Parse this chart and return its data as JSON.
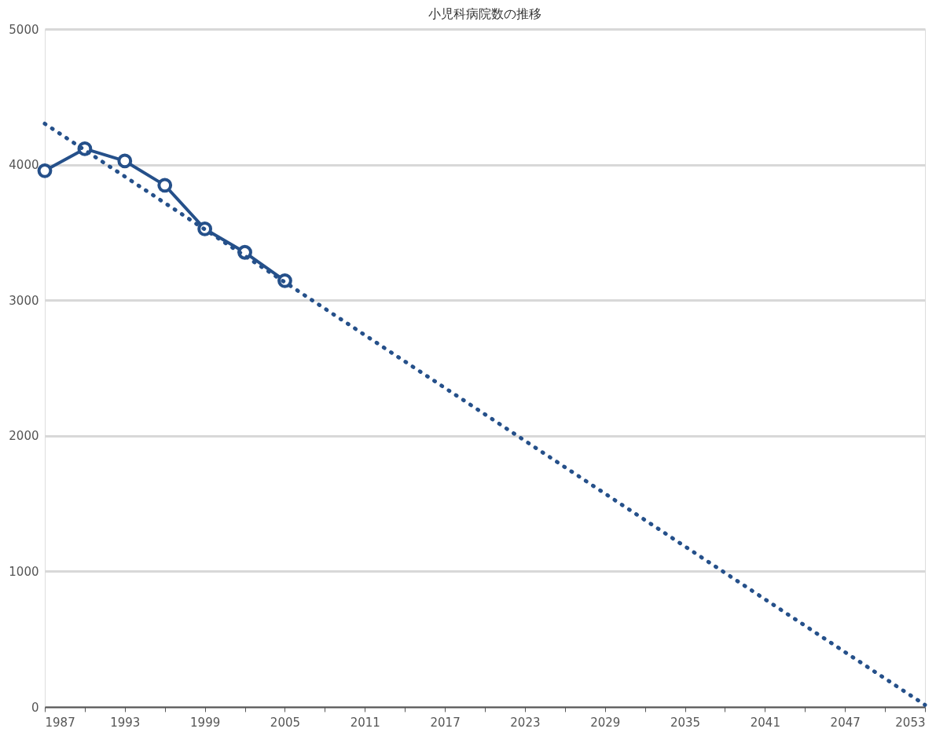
{
  "chart_data": {
    "type": "line",
    "title": "小児科病院数の推移",
    "x": [
      1987,
      1990,
      1993,
      1996,
      1999,
      2002,
      2005
    ],
    "series": [
      {
        "color": "#25508a",
        "values": [
          3955,
          4117,
          4027,
          3848,
          3526,
          3353,
          3144
        ],
        "marker": "circle",
        "line_style": "solid"
      },
      {
        "type": "line",
        "color": "#25508a",
        "x": [
          1987,
          2053
        ],
        "values": [
          4302,
          15
        ],
        "marker": "none",
        "line_style": "dotted"
      }
    ],
    "xlim": [
      1987,
      2053
    ],
    "xticks": [
      1987,
      {
        "value": 1990,
        "label": null
      },
      1993,
      {
        "value": 1996,
        "label": null
      },
      1999,
      {
        "value": 2002,
        "label": null
      },
      2005,
      {
        "value": 2008,
        "label": null
      },
      2011,
      {
        "value": 2014,
        "label": null
      },
      2017,
      {
        "value": 2020,
        "label": null
      },
      2023,
      {
        "value": 2026,
        "label": null
      },
      2029,
      {
        "value": 2032,
        "label": null
      },
      2035,
      {
        "value": 2038,
        "label": null
      },
      2041,
      {
        "value": 2044,
        "label": null
      },
      2047,
      {
        "value": 2050,
        "label": null
      },
      2053
    ],
    "ylim": [
      0,
      5000
    ],
    "yticks": [
      0,
      1000,
      2000,
      3000,
      4000,
      5000
    ],
    "grid": "y"
  }
}
